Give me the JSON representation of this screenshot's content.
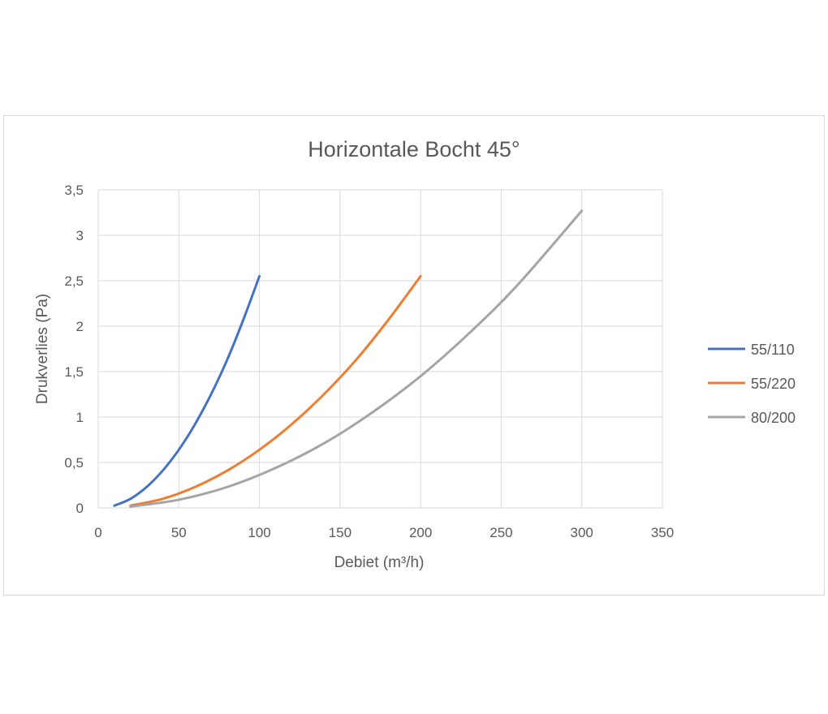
{
  "chart_data": {
    "type": "line",
    "title": "Horizontale Bocht 45°",
    "xlabel": "Debiet (m³/h)",
    "ylabel": "Drukverlies (Pa)",
    "xlim": [
      0,
      350
    ],
    "ylim": [
      0,
      3.5
    ],
    "x_ticks": [
      "0",
      "50",
      "100",
      "150",
      "200",
      "250",
      "300",
      "350"
    ],
    "y_ticks": [
      "0",
      "0,5",
      "1",
      "1,5",
      "2",
      "2,5",
      "3",
      "3,5"
    ],
    "grid": true,
    "legend_position": "right",
    "series": [
      {
        "name": "55/110",
        "color": "#4472c4",
        "x": [
          10,
          20,
          30,
          40,
          50,
          60,
          70,
          80,
          90,
          100
        ],
        "y": [
          0.025,
          0.1,
          0.23,
          0.41,
          0.64,
          0.92,
          1.25,
          1.63,
          2.07,
          2.55
        ]
      },
      {
        "name": "55/220",
        "color": "#ed7d31",
        "x": [
          20,
          40,
          60,
          80,
          100,
          120,
          140,
          160,
          180,
          200
        ],
        "y": [
          0.025,
          0.1,
          0.23,
          0.41,
          0.64,
          0.92,
          1.25,
          1.63,
          2.07,
          2.55
        ]
      },
      {
        "name": "80/200",
        "color": "#a5a5a5",
        "x": [
          20,
          50,
          80,
          110,
          140,
          170,
          200,
          230,
          260,
          300
        ],
        "y": [
          0.015,
          0.09,
          0.23,
          0.44,
          0.71,
          1.05,
          1.45,
          1.92,
          2.45,
          3.27
        ]
      }
    ]
  }
}
